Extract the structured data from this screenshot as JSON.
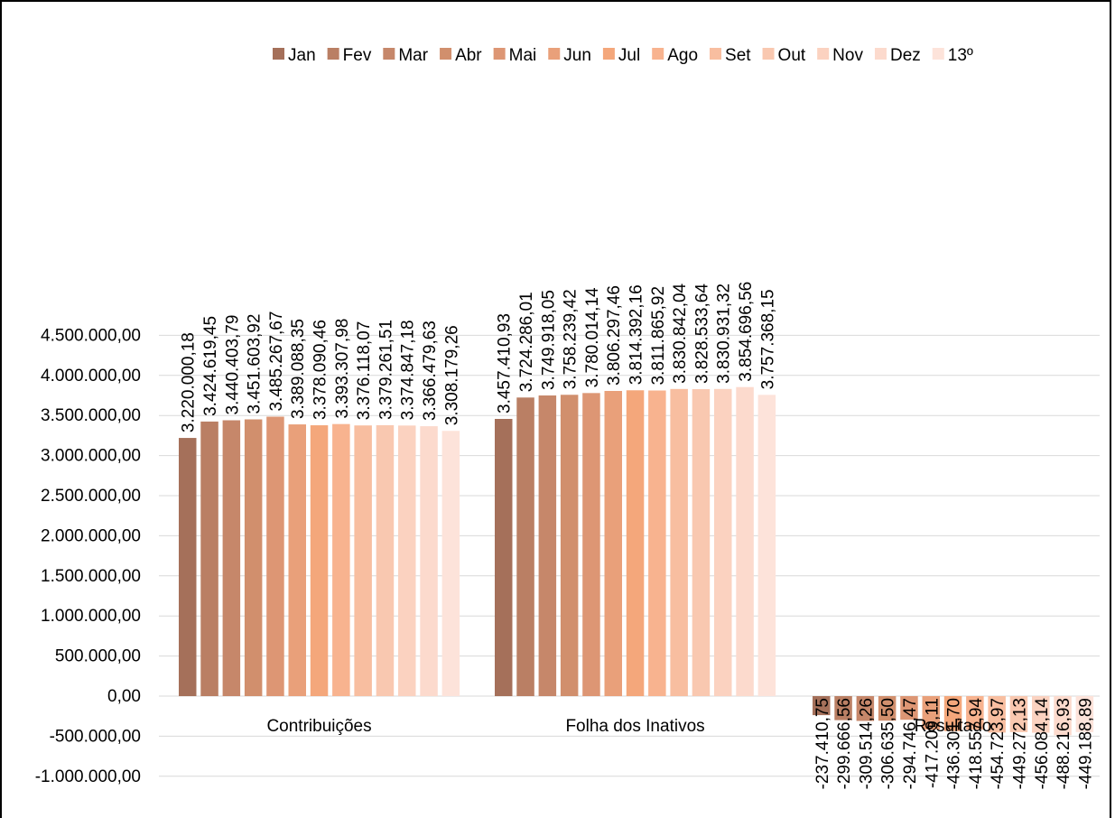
{
  "chart_data": {
    "type": "bar",
    "categories": [
      "Contribuições",
      "Folha dos Inativos",
      "Resultado"
    ],
    "series": [
      {
        "name": "Jan",
        "color": "#a5705a",
        "values": [
          3220000.18,
          3457410.93,
          -237410.75
        ]
      },
      {
        "name": "Fev",
        "color": "#ba7f64",
        "values": [
          3424619.45,
          3724286.01,
          -299666.56
        ]
      },
      {
        "name": "Mar",
        "color": "#c6876a",
        "values": [
          3440403.79,
          3749918.05,
          -309514.26
        ]
      },
      {
        "name": "Abr",
        "color": "#d18f6d",
        "values": [
          3451603.92,
          3758239.42,
          -306635.5
        ]
      },
      {
        "name": "Mai",
        "color": "#dd9674",
        "values": [
          3485267.67,
          3780014.14,
          -294746.47
        ]
      },
      {
        "name": "Jun",
        "color": "#e9a07a",
        "values": [
          3389088.35,
          3806297.46,
          -417209.11
        ]
      },
      {
        "name": "Jul",
        "color": "#f4a77b",
        "values": [
          3378090.46,
          3814392.16,
          -436301.7
        ]
      },
      {
        "name": "Ago",
        "color": "#f8b38f",
        "values": [
          3393307.98,
          3811865.92,
          -418557.94
        ]
      },
      {
        "name": "Set",
        "color": "#f8bea0",
        "values": [
          3376118.07,
          3830842.04,
          -454723.97
        ]
      },
      {
        "name": "Out",
        "color": "#f9c8b0",
        "values": [
          3379261.51,
          3828533.64,
          -449272.13
        ]
      },
      {
        "name": "Nov",
        "color": "#fbd2c0",
        "values": [
          3374847.18,
          3830931.32,
          -456084.14
        ]
      },
      {
        "name": "Dez",
        "color": "#fcdacd",
        "values": [
          3366479.63,
          3854696.56,
          -488216.93
        ]
      },
      {
        "name": "13º",
        "color": "#fde3da",
        "values": [
          3308179.26,
          3757368.15,
          -449188.89
        ]
      }
    ],
    "value_labels": [
      [
        "3.220.000,18",
        "3.457.410,93",
        "-237.410,75"
      ],
      [
        "3.424.619,45",
        "3.724.286,01",
        "-299.666,56"
      ],
      [
        "3.440.403,79",
        "3.749.918,05",
        "-309.514,26"
      ],
      [
        "3.451.603,92",
        "3.758.239,42",
        "-306.635,50"
      ],
      [
        "3.485.267,67",
        "3.780.014,14",
        "-294.746,47"
      ],
      [
        "3.389.088,35",
        "3.806.297,46",
        "-417.209,11"
      ],
      [
        "3.378.090,46",
        "3.814.392,16",
        "-436.301,70"
      ],
      [
        "3.393.307,98",
        "3.811.865,92",
        "-418.557,94"
      ],
      [
        "3.376.118,07",
        "3.830.842,04",
        "-454.723,97"
      ],
      [
        "3.379.261,51",
        "3.828.533,64",
        "-449.272,13"
      ],
      [
        "3.374.847,18",
        "3.830.931,32",
        "-456.084,14"
      ],
      [
        "3.366.479,63",
        "3.854.696,56",
        "-488.216,93"
      ],
      [
        "3.308.179,26",
        "3.757.368,15",
        "-449.188,89"
      ]
    ],
    "yticks": [
      4500000,
      4000000,
      3500000,
      3000000,
      2500000,
      2000000,
      1500000,
      1000000,
      500000,
      0,
      -500000,
      -1000000
    ],
    "ytick_labels": [
      "4.500.000,00",
      "4.000.000,00",
      "3.500.000,00",
      "3.000.000,00",
      "2.500.000,00",
      "2.000.000,00",
      "1.500.000,00",
      "1.000.000,00",
      "500.000,00",
      "0,00",
      "-500.000,00",
      "-1.000.000,00"
    ],
    "ylim": [
      -1000000,
      4500000
    ],
    "grid": true,
    "legend_position": "top-right",
    "title": "",
    "xlabel": "",
    "ylabel": ""
  }
}
